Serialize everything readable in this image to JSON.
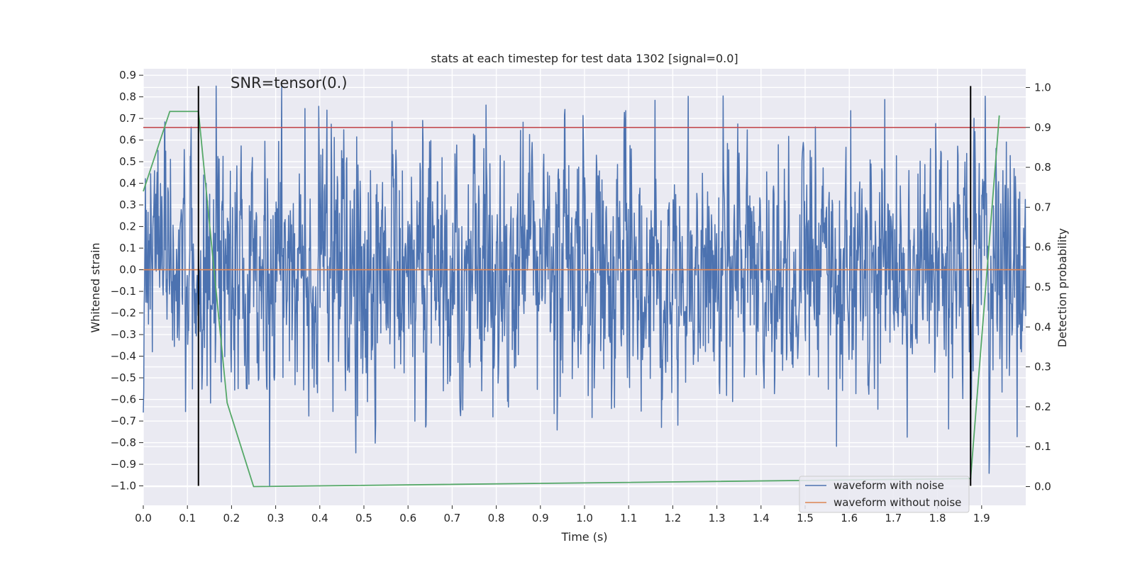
{
  "chart_data": {
    "type": "line",
    "title": "stats at each timestep for test data 1302 [signal=0.0]",
    "xlabel": "Time (s)",
    "ylabel": "Whitened strain",
    "y2label": "Detection probability",
    "annotation": "SNR=tensor(0.)",
    "xlim": [
      0.0,
      2.0
    ],
    "ylim": [
      -1.09,
      0.93
    ],
    "y2lim": [
      -0.047,
      1.047
    ],
    "xticks": [
      "0.0",
      "0.1",
      "0.2",
      "0.3",
      "0.4",
      "0.5",
      "0.6",
      "0.7",
      "0.8",
      "0.9",
      "1.0",
      "1.1",
      "1.2",
      "1.3",
      "1.4",
      "1.5",
      "1.6",
      "1.7",
      "1.8",
      "1.9"
    ],
    "yticks": [
      "0.9",
      "0.8",
      "0.7",
      "0.6",
      "0.5",
      "0.4",
      "0.3",
      "0.2",
      "0.1",
      "0.0",
      "−0.1",
      "−0.2",
      "−0.3",
      "−0.4",
      "−0.5",
      "−0.6",
      "−0.7",
      "−0.8",
      "−0.9",
      "−1.0"
    ],
    "y2ticks": [
      "1.0",
      "0.9",
      "0.8",
      "0.7",
      "0.6",
      "0.5",
      "0.4",
      "0.3",
      "0.2",
      "0.1",
      "0.0"
    ],
    "grid": true,
    "legend_position": "lower-right",
    "series": [
      {
        "name": "waveform with noise",
        "color": "#4c72b0",
        "kind": "noise",
        "samples": 2048,
        "approx_std": 0.28,
        "y_range": [
          -1.0,
          0.85
        ]
      },
      {
        "name": "waveform without noise",
        "color": "#dd8452",
        "x": [
          0.0,
          2.0
        ],
        "y": [
          0.0,
          0.0
        ]
      },
      {
        "axis": "right",
        "color": "#55a868",
        "x": [
          0.0,
          0.06,
          0.125,
          0.19,
          0.25,
          1.875,
          1.94
        ],
        "y": [
          0.74,
          0.94,
          0.94,
          0.21,
          0.0,
          0.02,
          0.93
        ]
      }
    ],
    "threshold_line": {
      "axis": "right",
      "value": 0.9,
      "color": "#c44e52"
    },
    "vertical_lines": [
      {
        "x": 0.125,
        "y_from": -1.0,
        "y_to": 0.85,
        "color": "#000000"
      },
      {
        "x": 1.875,
        "y_from": -1.0,
        "y_to": 0.85,
        "color": "#000000"
      }
    ]
  }
}
